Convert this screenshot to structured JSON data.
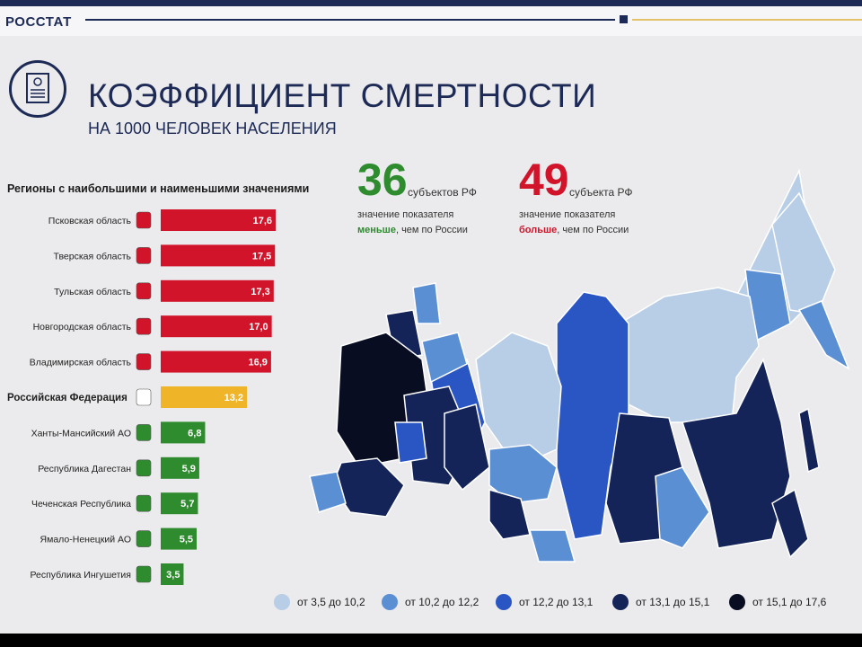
{
  "header": {
    "brand": "РОССТАТ"
  },
  "title": "КОЭФФИЦИЕНТ СМЕРТНОСТИ",
  "subtitle": "НА 1000 ЧЕЛОВЕК НАСЕЛЕНИЯ",
  "stats": [
    {
      "number": "36",
      "unit": "субъектов РФ",
      "line1": "значение показателя",
      "emphasis": "меньше",
      "rest": ", чем по России",
      "color": "#2e8b2e"
    },
    {
      "number": "49",
      "unit": "субъекта РФ",
      "line1": "значение показателя",
      "emphasis": "больше",
      "rest": ", чем по России",
      "color": "#d1142a"
    }
  ],
  "chart_data": {
    "type": "bar",
    "orientation": "horizontal",
    "title": "Регионы с наибольшими и наименьшими значениями",
    "categories": [
      "Псковская область",
      "Тверская область",
      "Тульская область",
      "Новгородская область",
      "Владимирская область",
      "Российская Федерация",
      "Ханты-Мансийский АО",
      "Республика Дагестан",
      "Чеченская Республика",
      "Ямало-Ненецкий АО",
      "Республика Ингушетия"
    ],
    "values": [
      17.6,
      17.5,
      17.3,
      17.0,
      16.9,
      13.2,
      6.8,
      5.9,
      5.7,
      5.5,
      3.5
    ],
    "value_labels": [
      "17,6",
      "17,5",
      "17,3",
      "17,0",
      "16,9",
      "13,2",
      "6,8",
      "5,9",
      "5,7",
      "5,5",
      "3,5"
    ],
    "colors": [
      "#d1142a",
      "#d1142a",
      "#d1142a",
      "#d1142a",
      "#d1142a",
      "#f0b429",
      "#2e8b2e",
      "#2e8b2e",
      "#2e8b2e",
      "#2e8b2e",
      "#2e8b2e"
    ],
    "highlight": "Российская Федерация",
    "xlim": [
      0,
      17.6
    ]
  },
  "map": {
    "legend": [
      {
        "label": "от 3,5 до 10,2",
        "color": "#b8cde6"
      },
      {
        "label": "от 10,2 до 12,2",
        "color": "#5b8fd4"
      },
      {
        "label": "от 12,2 до 13,1",
        "color": "#2a56c4"
      },
      {
        "label": "от 13,1 до 15,1",
        "color": "#142458"
      },
      {
        "label": "от 15,1 до 17,6",
        "color": "#090d22"
      }
    ]
  }
}
